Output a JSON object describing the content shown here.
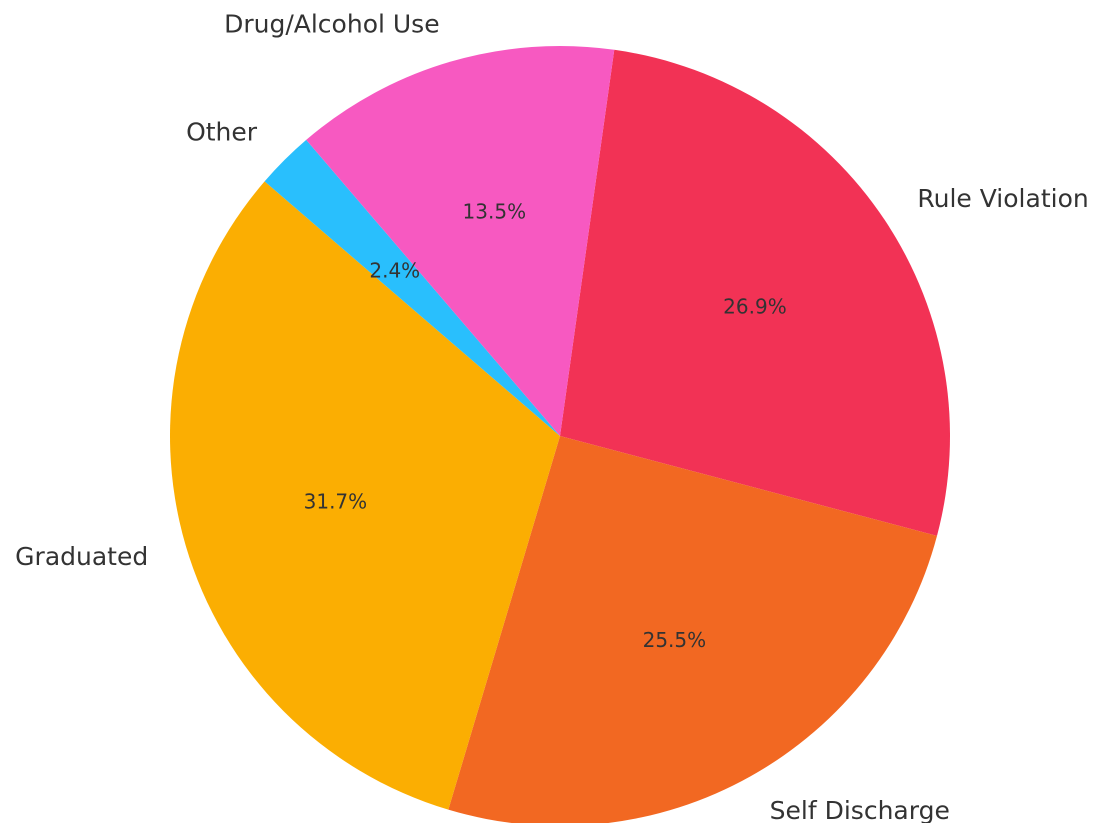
{
  "chart_data": {
    "type": "pie",
    "categories": [
      "Rule Violation",
      "Self Discharge",
      "Graduated",
      "Other",
      "Drug/Alcohol Use"
    ],
    "values": [
      26.9,
      25.5,
      31.7,
      2.4,
      13.5
    ],
    "value_labels": [
      "26.9%",
      "25.5%",
      "31.7%",
      "2.4%",
      "13.5%"
    ],
    "colors": [
      "#F23255",
      "#F26822",
      "#FBAE02",
      "#29BFFD",
      "#F759C1"
    ],
    "start_angle_deg": 82,
    "direction": "clockwise",
    "title": "",
    "legend": "none"
  }
}
